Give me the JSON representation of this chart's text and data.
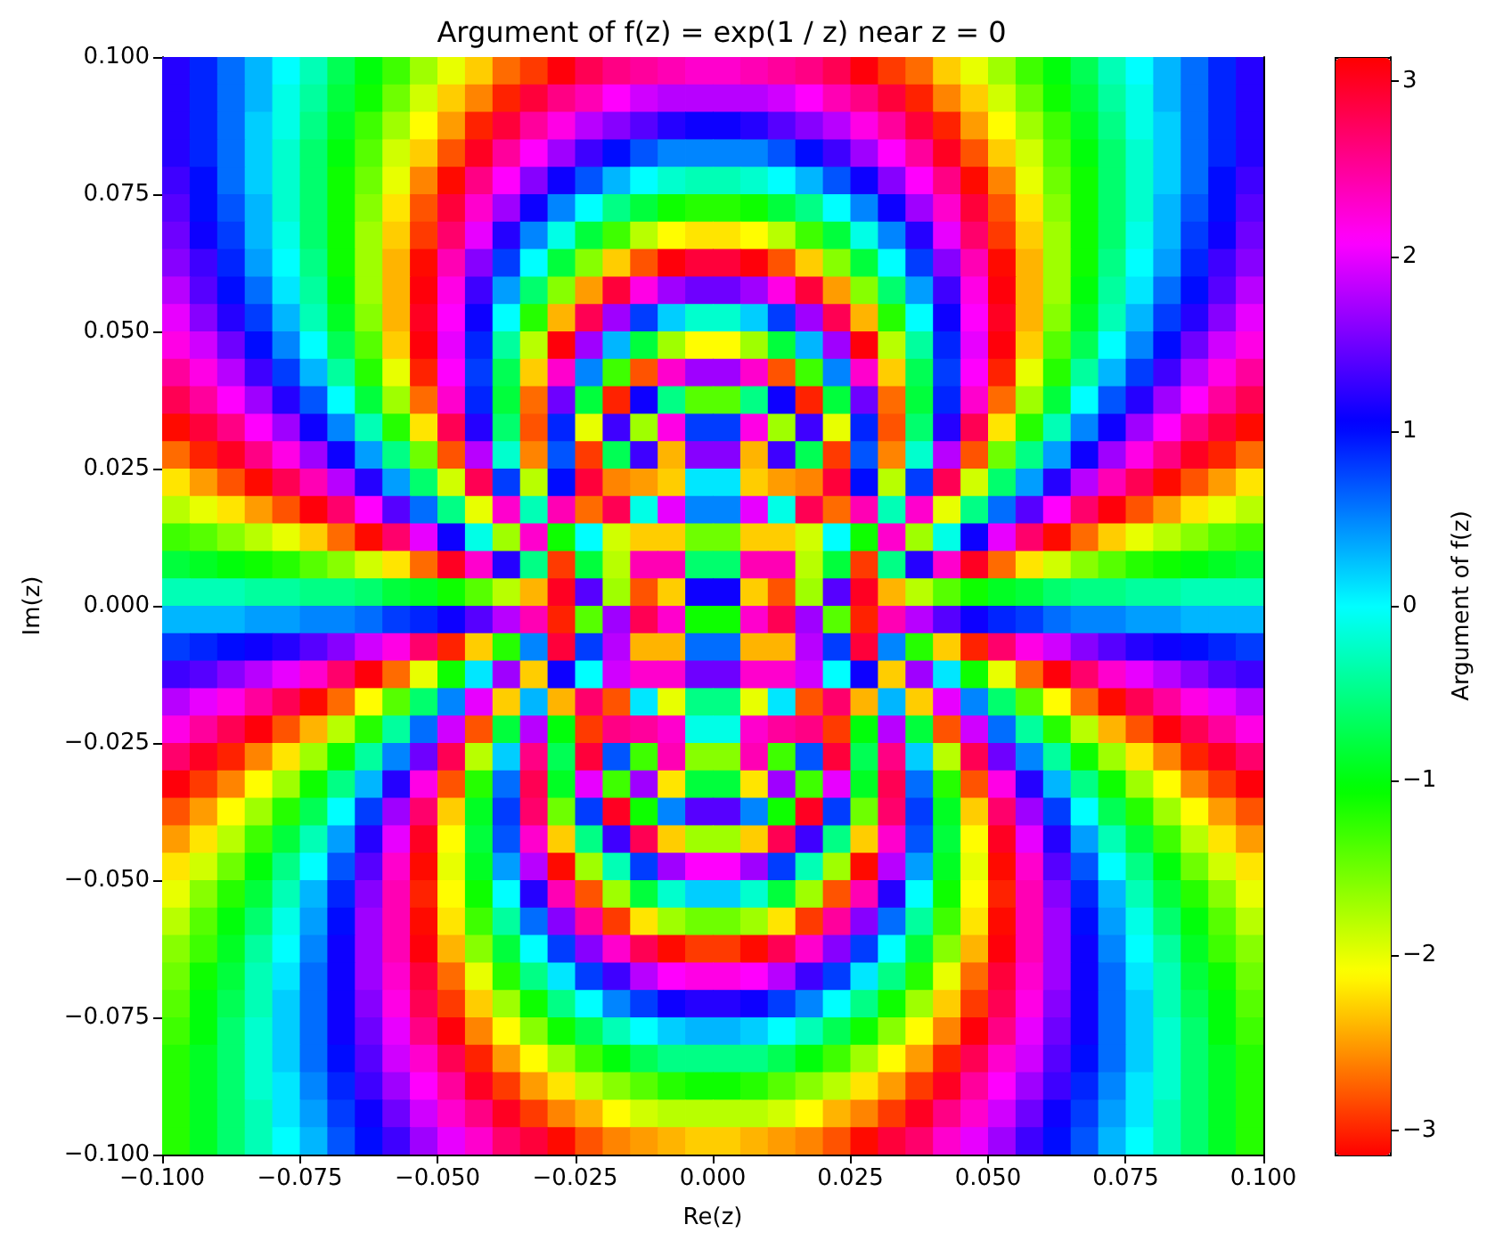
{
  "chart_data": {
    "type": "heatmap",
    "title": "Argument of f(z) = exp(1 / z) near z = 0",
    "xlabel": "Re(z)",
    "ylabel": "Im(z)",
    "clabel": "Argument of f(z)",
    "xlim": [
      -0.1,
      0.1
    ],
    "xticks": [
      {
        "value": -0.1,
        "label": "−0.100"
      },
      {
        "value": -0.075,
        "label": "−0.075"
      },
      {
        "value": -0.05,
        "label": "−0.050"
      },
      {
        "value": -0.025,
        "label": "−0.025"
      },
      {
        "value": 0,
        "label": "0.000"
      },
      {
        "value": 0.025,
        "label": "0.025"
      },
      {
        "value": 0.05,
        "label": "0.050"
      },
      {
        "value": 0.075,
        "label": "0.075"
      },
      {
        "value": 0.1,
        "label": "0.100"
      }
    ],
    "ylim": [
      -0.1,
      0.1
    ],
    "yticks": [
      {
        "value": -0.1,
        "label": "−0.100"
      },
      {
        "value": -0.075,
        "label": "−0.075"
      },
      {
        "value": -0.05,
        "label": "−0.050"
      },
      {
        "value": -0.025,
        "label": "−0.025"
      },
      {
        "value": 0,
        "label": "0.000"
      },
      {
        "value": 0.025,
        "label": "0.025"
      },
      {
        "value": 0.05,
        "label": "0.050"
      },
      {
        "value": 0.075,
        "label": "0.075"
      },
      {
        "value": 0.1,
        "label": "0.100"
      }
    ],
    "clim": [
      -3.14,
      3.14
    ],
    "cticks": [
      {
        "value": -3,
        "label": "−3"
      },
      {
        "value": -2,
        "label": "−2"
      },
      {
        "value": -1,
        "label": "−1"
      },
      0,
      1,
      2,
      3
    ],
    "cells": [
      [
        1.2,
        0.9,
        0.6,
        0.3,
        0,
        -0.3,
        -0.7,
        -1,
        -1.3,
        -1.7,
        -2,
        -2.3,
        -2.7,
        -2.9,
        3.1,
        2.8,
        2.6,
        2.5,
        2.4,
        2.3,
        2.3,
        2.4,
        2.5,
        2.6,
        2.8,
        3.1,
        -2.9,
        -2.7,
        -2.3,
        -2,
        -1.7,
        -1.3,
        -1,
        -0.7,
        -0.3,
        0,
        0.3,
        0.6,
        0.9,
        1.2
      ],
      [
        1.2,
        0.9,
        0.6,
        0.3,
        -0.1,
        -0.4,
        -0.8,
        -1.1,
        -1.5,
        -1.9,
        -2.3,
        -2.6,
        -3,
        2.9,
        2.6,
        2.4,
        2.1,
        1.9,
        1.8,
        1.8,
        1.8,
        1.8,
        1.9,
        2.1,
        2.4,
        2.6,
        2.9,
        -3,
        -2.6,
        -2.3,
        -1.9,
        -1.5,
        -1.1,
        -0.8,
        -0.4,
        -0.1,
        0.3,
        0.6,
        0.9,
        1.2
      ],
      [
        1.2,
        0.9,
        0.6,
        0.2,
        -0.1,
        -0.5,
        -0.9,
        -1.3,
        -1.7,
        -2.1,
        -2.5,
        -3,
        2.9,
        2.5,
        2.2,
        1.8,
        1.6,
        1.4,
        1.2,
        1.1,
        1.1,
        1.2,
        1.4,
        1.6,
        1.8,
        2.2,
        2.5,
        2.9,
        -3,
        -2.5,
        -2.1,
        -1.7,
        -1.3,
        -0.9,
        -0.5,
        -0.1,
        0.2,
        0.6,
        0.9,
        1.2
      ],
      [
        1.2,
        0.9,
        0.6,
        0.2,
        -0.2,
        -0.6,
        -1,
        -1.4,
        -1.9,
        -2.3,
        -2.8,
        3,
        2.5,
        2.1,
        1.7,
        1.3,
        1,
        0.7,
        0.5,
        0.5,
        0.5,
        0.5,
        0.7,
        1,
        1.3,
        1.7,
        2.1,
        2.5,
        3,
        -2.8,
        -2.3,
        -1.9,
        -1.4,
        -1,
        -0.6,
        -0.2,
        0.2,
        0.6,
        0.9,
        1.2
      ],
      [
        1.3,
        1,
        0.6,
        0.2,
        -0.2,
        -0.6,
        -1.1,
        -1.5,
        -2,
        -2.6,
        -3.1,
        2.6,
        2.1,
        1.6,
        1.1,
        0.7,
        0.3,
        0,
        -0.2,
        -0.3,
        -0.3,
        -0.2,
        0,
        0.3,
        0.7,
        1.1,
        1.6,
        2.1,
        2.6,
        -3.1,
        -2.6,
        -2,
        -1.5,
        -1.1,
        -0.6,
        -0.2,
        0.2,
        0.6,
        1,
        1.3
      ],
      [
        1.4,
        1,
        0.7,
        0.3,
        -0.2,
        -0.6,
        -1.1,
        -1.6,
        -2.2,
        -2.8,
        2.9,
        2.3,
        1.7,
        1.1,
        0.5,
        0,
        -0.5,
        -0.8,
        -1.1,
        -1.2,
        -1.2,
        -1.1,
        -0.8,
        -0.5,
        0,
        0.5,
        1.1,
        1.7,
        2.3,
        2.9,
        -2.8,
        -2.2,
        -1.6,
        -1.1,
        -0.6,
        -0.2,
        0.3,
        0.7,
        1,
        1.4
      ],
      [
        1.5,
        1.1,
        0.8,
        0.3,
        -0.1,
        -0.6,
        -1.1,
        -1.7,
        -2.3,
        -2.9,
        2.7,
        2,
        1.2,
        0.5,
        -0.1,
        -0.8,
        -1.3,
        -1.8,
        -2.1,
        -2.2,
        -2.2,
        -2.1,
        -1.8,
        -1.3,
        -0.8,
        -0.1,
        0.5,
        1.2,
        2,
        2.7,
        -2.9,
        -2.3,
        -1.7,
        -1.1,
        -0.6,
        -0.1,
        0.3,
        0.8,
        1.1,
        1.5
      ],
      [
        1.6,
        1.3,
        0.9,
        0.4,
        0,
        -0.5,
        -1.1,
        -1.7,
        -2.4,
        -3.1,
        2.4,
        1.6,
        0.8,
        0,
        -0.8,
        -1.6,
        -2.3,
        -2.8,
        3.1,
        2.9,
        2.9,
        3.1,
        -2.8,
        -2.3,
        -1.6,
        -0.8,
        0,
        0.8,
        1.6,
        2.4,
        -3.1,
        -2.4,
        -1.7,
        -1.1,
        -0.5,
        0,
        0.4,
        0.9,
        1.3,
        1.6
      ],
      [
        1.8,
        1.4,
        1,
        0.6,
        0.1,
        -0.4,
        -1,
        -1.7,
        -2.4,
        3.1,
        2.2,
        1.3,
        0.4,
        -0.6,
        -1.6,
        -2.5,
        2.9,
        2.2,
        1.7,
        1.5,
        1.5,
        1.7,
        2.2,
        2.9,
        -2.5,
        -1.6,
        -0.6,
        0.4,
        1.3,
        2.2,
        3.1,
        -2.4,
        -1.7,
        -1,
        -0.4,
        0.1,
        0.6,
        1,
        1.4,
        1.8
      ],
      [
        2,
        1.6,
        1.2,
        0.8,
        0.3,
        -0.3,
        -0.9,
        -1.6,
        -2.4,
        3,
        2.1,
        1.1,
        0,
        -1.2,
        -2.4,
        2.8,
        1.7,
        0.8,
        0.2,
        -0.2,
        -0.2,
        0.2,
        0.8,
        1.7,
        2.8,
        -2.4,
        -1.2,
        0,
        1.1,
        2.1,
        3,
        -2.4,
        -1.6,
        -0.9,
        -0.3,
        0.3,
        0.8,
        1.2,
        1.6,
        2
      ],
      [
        2.2,
        1.9,
        1.5,
        1,
        0.5,
        0,
        -0.7,
        -1.4,
        -2.3,
        3.1,
        2,
        0.9,
        -0.4,
        -1.8,
        3.1,
        1.7,
        0.3,
        -0.8,
        -1.7,
        -2.1,
        -2.1,
        -1.7,
        -0.8,
        0.3,
        1.7,
        3.1,
        -1.8,
        -0.4,
        0.9,
        2,
        3.1,
        -2.3,
        -1.4,
        -0.7,
        0,
        0.5,
        1,
        1.5,
        1.9,
        2.2
      ],
      [
        2.5,
        2.2,
        1.8,
        1.3,
        0.8,
        0.3,
        -0.4,
        -1.2,
        -2,
        -3,
        2.1,
        0.8,
        -0.7,
        -2.3,
        2.3,
        0.5,
        -1.3,
        -2.8,
        2.3,
        1.7,
        1.7,
        2.3,
        -2.8,
        -1.3,
        0.5,
        2.3,
        -2.3,
        -0.7,
        0.8,
        2.1,
        -3,
        -2,
        -1.2,
        -0.4,
        0.3,
        0.8,
        1.3,
        1.8,
        2.2,
        2.5
      ],
      [
        2.8,
        2.5,
        2.1,
        1.7,
        1.2,
        0.7,
        0,
        -0.8,
        -1.7,
        -2.7,
        2.3,
        0.9,
        -0.8,
        -2.7,
        1.5,
        -0.8,
        -3,
        1.1,
        -0.5,
        -1.4,
        -1.4,
        -0.5,
        1.1,
        -3,
        -0.8,
        1.5,
        -2.7,
        -0.8,
        0.9,
        2.3,
        -2.7,
        -1.7,
        -0.8,
        0,
        0.7,
        1.2,
        1.7,
        2.1,
        2.5,
        2.8
      ],
      [
        -3.1,
        2.9,
        2.6,
        2.1,
        1.7,
        1.1,
        0.5,
        -0.3,
        -1.2,
        -2.2,
        2.8,
        1.2,
        -0.6,
        -2.8,
        0.9,
        -2,
        1.3,
        -1.7,
        2.2,
        0.8,
        0.8,
        2.2,
        -1.7,
        1.3,
        -2,
        0.9,
        -2.8,
        -0.6,
        1.2,
        2.8,
        -2.2,
        -1.2,
        -0.3,
        0.5,
        1.1,
        1.7,
        2.1,
        2.6,
        2.9,
        -3.1
      ],
      [
        -2.7,
        -3,
        3,
        2.6,
        2.2,
        1.7,
        1.1,
        0.4,
        -0.5,
        -1.5,
        -2.8,
        1.8,
        -0.2,
        -2.6,
        0.7,
        -2.9,
        -0.7,
        1.3,
        -2.4,
        1.6,
        1.6,
        -2.4,
        1.3,
        -0.7,
        -2.9,
        0.7,
        -2.6,
        -0.2,
        1.8,
        -2.8,
        -1.5,
        -0.5,
        0.4,
        1.1,
        1.7,
        2.2,
        2.6,
        3,
        -3,
        -2.7
      ],
      [
        -2.2,
        -2.5,
        -2.8,
        -3.1,
        2.8,
        2.4,
        1.8,
        1.2,
        0.4,
        -0.6,
        -1.9,
        2.8,
        0.8,
        -1.8,
        1,
        2.9,
        -2.6,
        -2.5,
        -2.3,
        0.1,
        0.1,
        -2.3,
        -2.5,
        -2.6,
        2.9,
        1,
        -1.8,
        0.8,
        2.8,
        -1.9,
        -0.6,
        0.4,
        1.2,
        1.8,
        2.4,
        2.8,
        -3.1,
        -2.8,
        -2.5,
        -2.2
      ],
      [
        -1.8,
        -2,
        -2.2,
        -2.5,
        -2.8,
        3.1,
        2.7,
        2.1,
        1.4,
        0.6,
        -0.5,
        -2,
        2.3,
        -0.3,
        2.4,
        -2.7,
        2.8,
        -0.1,
        2,
        0.5,
        0.5,
        2,
        -0.1,
        2.8,
        -2.7,
        2.4,
        -0.3,
        2.3,
        -2,
        -0.5,
        0.6,
        1.4,
        2.1,
        2.7,
        3.1,
        -2.8,
        -2.5,
        -2.2,
        -2,
        -1.8
      ],
      [
        -1.3,
        -1.4,
        -1.6,
        -1.8,
        -2,
        -2.3,
        -2.7,
        -3.1,
        2.7,
        2,
        1.1,
        -0.1,
        -1.7,
        2.3,
        -1.1,
        0,
        -1.9,
        -2.3,
        -2.3,
        -1.5,
        -1.5,
        -2.3,
        -2.3,
        -1.9,
        0,
        -1.1,
        2.3,
        -1.7,
        -0.1,
        1.1,
        2,
        2.7,
        -3.1,
        -2.7,
        -2.3,
        -2,
        -1.8,
        -1.6,
        -1.4,
        -1.3
      ],
      [
        -0.8,
        -0.9,
        -1,
        -1.1,
        -1.2,
        -1.4,
        -1.6,
        -1.9,
        -2.2,
        -2.7,
        3,
        2.3,
        1.2,
        -0.5,
        -2.9,
        -0.8,
        -1.8,
        2.4,
        2.4,
        -0.6,
        -0.6,
        2.4,
        2.4,
        -1.8,
        -0.8,
        -2.9,
        -0.5,
        1.2,
        2.3,
        3,
        -2.7,
        -2.2,
        -1.9,
        -1.6,
        -1.4,
        -1.2,
        -1.1,
        -1,
        -0.9,
        -0.8
      ],
      [
        -0.3,
        -0.3,
        -0.3,
        -0.4,
        -0.4,
        -0.5,
        -0.5,
        -0.6,
        -0.8,
        -0.9,
        -1.1,
        -1.4,
        -1.8,
        -2.4,
        3,
        1.4,
        -1.7,
        -2.8,
        -2.3,
        1.1,
        1.1,
        -2.3,
        -2.8,
        -1.7,
        1.4,
        3,
        -2.4,
        -1.8,
        -1.4,
        -1.1,
        -0.9,
        -0.8,
        -0.6,
        -0.5,
        -0.5,
        -0.4,
        -0.4,
        -0.3,
        -0.3,
        -0.3
      ],
      [
        0.3,
        0.3,
        0.3,
        0.4,
        0.4,
        0.5,
        0.5,
        0.6,
        0.8,
        0.9,
        1.1,
        1.4,
        1.8,
        2.4,
        -3,
        -1.4,
        1.7,
        2.8,
        2.3,
        -1.1,
        -1.1,
        2.3,
        2.8,
        1.7,
        -1.4,
        -3,
        2.4,
        1.8,
        1.4,
        1.1,
        0.9,
        0.8,
        0.6,
        0.5,
        0.5,
        0.4,
        0.4,
        0.3,
        0.3,
        0.3
      ],
      [
        0.8,
        0.9,
        1,
        1.1,
        1.2,
        1.4,
        1.6,
        1.9,
        2.2,
        2.7,
        -3,
        -2.3,
        -1.2,
        0.5,
        2.9,
        0.8,
        1.8,
        -2.4,
        -2.4,
        0.6,
        0.6,
        -2.4,
        -2.4,
        1.8,
        0.8,
        2.9,
        0.5,
        -1.2,
        -2.3,
        -3,
        2.7,
        2.2,
        1.9,
        1.6,
        1.4,
        1.2,
        1.1,
        1,
        0.9,
        0.8
      ],
      [
        1.3,
        1.4,
        1.6,
        1.8,
        2,
        2.3,
        2.7,
        3.1,
        -2.7,
        -2,
        -1.1,
        0.1,
        1.7,
        -2.3,
        1.1,
        0,
        1.9,
        2.3,
        2.3,
        1.5,
        1.5,
        2.3,
        2.3,
        1.9,
        0,
        1.1,
        -2.3,
        1.7,
        0.1,
        -1.1,
        -2,
        -2.7,
        3.1,
        2.7,
        2.3,
        2,
        1.8,
        1.6,
        1.4,
        1.3
      ],
      [
        1.8,
        2,
        2.2,
        2.5,
        2.8,
        -3.1,
        -2.7,
        -2.1,
        -1.4,
        -0.6,
        0.5,
        2,
        -2.3,
        0.3,
        -2.4,
        2.7,
        -2.8,
        0.1,
        -2,
        -0.5,
        -0.5,
        -2,
        0.1,
        -2.8,
        2.7,
        -2.4,
        0.3,
        -2.3,
        2,
        0.5,
        -0.6,
        -1.4,
        -2.1,
        -2.7,
        -3.1,
        2.8,
        2.5,
        2.2,
        2,
        1.8
      ],
      [
        2.2,
        2.5,
        2.8,
        3.1,
        -2.8,
        -2.4,
        -1.8,
        -1.2,
        -0.4,
        0.6,
        1.9,
        -2.8,
        -0.8,
        1.8,
        -1,
        -2.9,
        2.6,
        2.5,
        2.3,
        -0.1,
        -0.1,
        2.3,
        2.5,
        2.6,
        -2.9,
        -1,
        1.8,
        -0.8,
        -2.8,
        1.9,
        0.6,
        -0.4,
        -1.2,
        -1.8,
        -2.4,
        -2.8,
        3.1,
        2.8,
        2.5,
        2.2
      ],
      [
        2.7,
        3,
        -3,
        -2.6,
        -2.2,
        -1.7,
        -1.1,
        -0.4,
        0.5,
        1.5,
        2.8,
        -1.8,
        0.2,
        2.6,
        -0.7,
        2.9,
        0.7,
        -1.3,
        2.4,
        -1.6,
        -1.6,
        2.4,
        -1.3,
        0.7,
        2.9,
        -0.7,
        2.6,
        0.2,
        -1.8,
        2.8,
        1.5,
        0.5,
        -0.4,
        -1.1,
        -1.7,
        -2.2,
        -2.6,
        -3,
        3,
        2.7
      ],
      [
        3.1,
        -2.9,
        -2.6,
        -2.1,
        -1.7,
        -1.1,
        -0.5,
        0.3,
        1.2,
        2.2,
        -2.8,
        -1.2,
        0.6,
        2.8,
        -0.9,
        2,
        -1.3,
        1.7,
        -2.2,
        -0.8,
        -0.8,
        -2.2,
        1.7,
        -1.3,
        2,
        -0.9,
        2.8,
        0.6,
        -1.2,
        -2.8,
        2.2,
        1.2,
        0.3,
        -0.5,
        -1.1,
        -1.7,
        -2.1,
        -2.6,
        -2.9,
        3.1
      ],
      [
        -2.8,
        -2.5,
        -2.1,
        -1.7,
        -1.2,
        -0.7,
        0,
        0.8,
        1.7,
        2.7,
        -2.3,
        -0.9,
        0.8,
        2.7,
        -1.5,
        0.8,
        3,
        -1.1,
        0.5,
        1.4,
        1.4,
        0.5,
        -1.1,
        3,
        0.8,
        -1.5,
        2.7,
        0.8,
        -0.9,
        -2.3,
        2.7,
        1.7,
        0.8,
        0,
        -0.7,
        -1.2,
        -1.7,
        -2.1,
        -2.5,
        -2.8
      ],
      [
        -2.5,
        -2.2,
        -1.8,
        -1.3,
        -0.8,
        -0.3,
        0.4,
        1.2,
        2,
        3,
        -2.1,
        -0.8,
        0.7,
        2.3,
        -2.3,
        -0.5,
        1.3,
        2.8,
        -2.3,
        -1.7,
        -1.7,
        -2.3,
        2.8,
        1.3,
        -0.5,
        -2.3,
        2.3,
        0.7,
        -0.8,
        -2.1,
        3,
        2,
        1.2,
        0.4,
        -0.3,
        -0.8,
        -1.3,
        -1.8,
        -2.2,
        -2.5
      ],
      [
        -2.2,
        -1.9,
        -1.5,
        -1,
        -0.5,
        0,
        0.7,
        1.4,
        2.3,
        -3.1,
        -2,
        -0.9,
        0.4,
        1.8,
        -3.1,
        -1.7,
        -0.3,
        0.8,
        1.7,
        2.1,
        2.1,
        1.7,
        0.8,
        -0.3,
        -1.7,
        -3.1,
        1.8,
        0.4,
        -0.9,
        -2,
        -3.1,
        2.3,
        1.4,
        0.7,
        0,
        -0.5,
        -1,
        -1.5,
        -1.9,
        -2.2
      ],
      [
        -2,
        -1.6,
        -1.2,
        -0.8,
        -0.3,
        0.3,
        0.9,
        1.6,
        2.4,
        -3,
        -2.1,
        -1.1,
        0,
        1.2,
        2.4,
        -2.8,
        -1.7,
        -0.8,
        -0.2,
        0.2,
        0.2,
        -0.2,
        -0.8,
        -1.7,
        -2.8,
        2.4,
        1.2,
        0,
        -1.1,
        -2.1,
        -3,
        2.4,
        1.6,
        0.9,
        0.3,
        -0.3,
        -0.8,
        -1.2,
        -1.6,
        -2
      ],
      [
        -1.8,
        -1.4,
        -1,
        -0.6,
        -0.1,
        0.4,
        1,
        1.7,
        2.4,
        -3.1,
        -2.2,
        -1.3,
        -0.4,
        0.6,
        1.6,
        2.5,
        -2.9,
        -2.2,
        -1.7,
        -1.5,
        -1.5,
        -1.7,
        -2.2,
        -2.9,
        2.5,
        1.6,
        0.6,
        -0.4,
        -1.3,
        -2.2,
        -3.1,
        2.4,
        1.7,
        1,
        0.4,
        -0.1,
        -0.6,
        -1,
        -1.4,
        -1.8
      ],
      [
        -1.6,
        -1.3,
        -0.9,
        -0.4,
        0,
        0.5,
        1.1,
        1.7,
        2.4,
        3.1,
        -2.4,
        -1.6,
        -0.8,
        0,
        0.8,
        1.6,
        2.3,
        2.8,
        -3.1,
        -2.9,
        -2.9,
        -3.1,
        2.8,
        2.3,
        1.6,
        0.8,
        0,
        -0.8,
        -1.6,
        -2.4,
        3.1,
        2.4,
        1.7,
        1.1,
        0.5,
        0,
        -0.4,
        -0.9,
        -1.3,
        -1.6
      ],
      [
        -1.5,
        -1.1,
        -0.8,
        -0.3,
        0.1,
        0.6,
        1.1,
        1.7,
        2.3,
        2.9,
        -2.7,
        -2,
        -1.2,
        -0.5,
        0.1,
        0.8,
        1.3,
        1.8,
        2.1,
        2.2,
        2.2,
        2.1,
        1.8,
        1.3,
        0.8,
        0.1,
        -0.5,
        -1.2,
        -2,
        -2.7,
        2.9,
        2.3,
        1.7,
        1.1,
        0.6,
        0.1,
        -0.3,
        -0.8,
        -1.1,
        -1.5
      ],
      [
        -1.4,
        -1,
        -0.7,
        -0.3,
        0.2,
        0.6,
        1.1,
        1.6,
        2.2,
        2.8,
        -2.9,
        -2.3,
        -1.7,
        -1.1,
        -0.5,
        0,
        0.5,
        0.8,
        1.1,
        1.2,
        1.2,
        1.1,
        0.8,
        0.5,
        0,
        -0.5,
        -1.1,
        -1.7,
        -2.3,
        -2.9,
        2.8,
        2.2,
        1.6,
        1.1,
        0.6,
        0.2,
        -0.3,
        -0.7,
        -1,
        -1.4
      ],
      [
        -1.3,
        -1,
        -0.6,
        -0.2,
        0.2,
        0.6,
        1.1,
        1.5,
        2,
        2.6,
        3.1,
        -2.6,
        -2.1,
        -1.6,
        -1.1,
        -0.7,
        -0.3,
        0,
        0.2,
        0.3,
        0.3,
        0.2,
        0,
        -0.3,
        -0.7,
        -1.1,
        -1.6,
        -2.1,
        -2.6,
        3.1,
        2.6,
        2,
        1.5,
        1.1,
        0.6,
        0.2,
        -0.2,
        -0.6,
        -1,
        -1.3
      ],
      [
        -1.2,
        -0.9,
        -0.6,
        -0.2,
        0.2,
        0.6,
        1,
        1.4,
        1.9,
        2.3,
        2.8,
        -3,
        -2.5,
        -2.1,
        -1.7,
        -1.3,
        -1,
        -0.7,
        -0.5,
        -0.5,
        -0.5,
        -0.5,
        -0.7,
        -1,
        -1.3,
        -1.7,
        -2.1,
        -2.5,
        -3,
        2.8,
        2.3,
        1.9,
        1.4,
        1,
        0.6,
        0.2,
        -0.2,
        -0.6,
        -0.9,
        -1.2
      ],
      [
        -1.2,
        -0.9,
        -0.6,
        -0.2,
        0.1,
        0.5,
        0.9,
        1.3,
        1.7,
        2.1,
        2.5,
        3,
        -2.9,
        -2.5,
        -2.2,
        -1.8,
        -1.6,
        -1.4,
        -1.2,
        -1.1,
        -1.1,
        -1.2,
        -1.4,
        -1.6,
        -1.8,
        -2.2,
        -2.5,
        -2.9,
        3,
        2.5,
        2.1,
        1.7,
        1.3,
        0.9,
        0.5,
        0.1,
        -0.2,
        -0.6,
        -0.9,
        -1.2
      ],
      [
        -1.2,
        -0.9,
        -0.6,
        -0.3,
        0.1,
        0.4,
        0.8,
        1.1,
        1.5,
        1.9,
        2.3,
        2.6,
        3,
        -2.9,
        -2.6,
        -2.4,
        -2.1,
        -1.9,
        -1.8,
        -1.8,
        -1.8,
        -1.8,
        -1.9,
        -2.1,
        -2.4,
        -2.6,
        -2.9,
        3,
        2.6,
        2.3,
        1.9,
        1.5,
        1.1,
        0.8,
        0.4,
        0.1,
        -0.3,
        -0.6,
        -0.9,
        -1.2
      ],
      [
        -1.2,
        -0.9,
        -0.6,
        -0.3,
        0,
        0.3,
        0.7,
        1,
        1.3,
        1.7,
        2,
        2.3,
        2.7,
        2.9,
        -3.1,
        -2.8,
        -2.6,
        -2.5,
        -2.4,
        -2.3,
        -2.3,
        -2.4,
        -2.5,
        -2.6,
        -2.8,
        -3.1,
        2.9,
        2.7,
        2.3,
        2,
        1.7,
        1.3,
        1,
        0.7,
        0.3,
        0,
        -0.3,
        -0.6,
        -0.9,
        -1.2
      ]
    ]
  }
}
